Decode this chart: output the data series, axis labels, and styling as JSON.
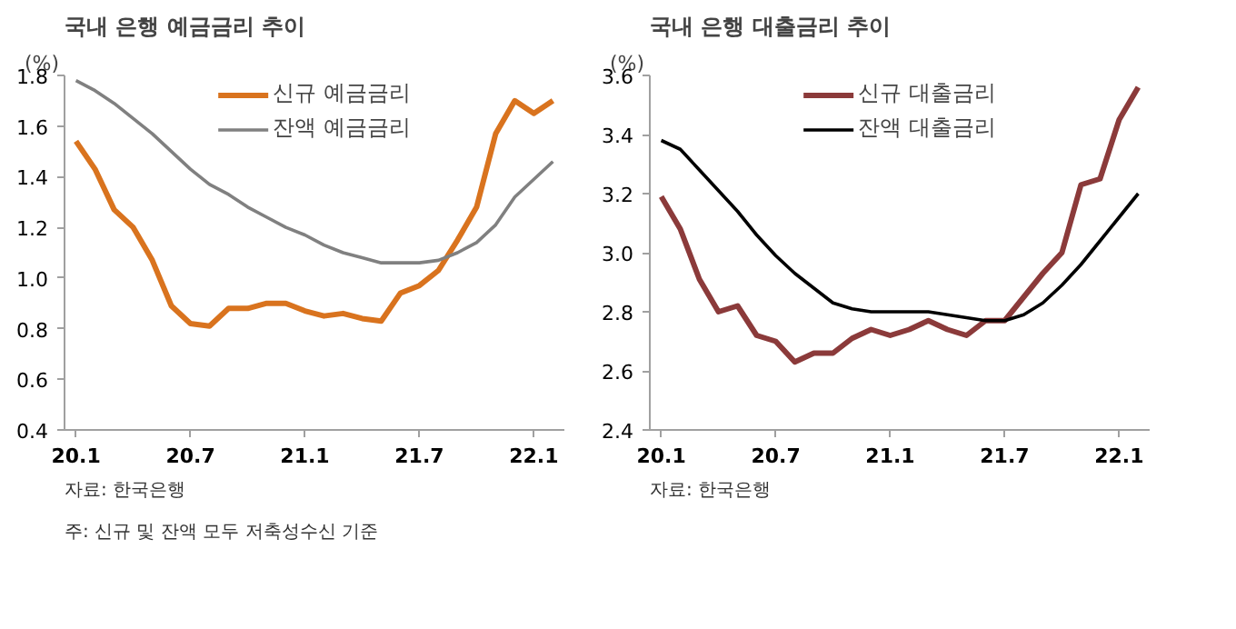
{
  "chart_data": [
    {
      "type": "line",
      "title": "국내 은행 예금금리 추이",
      "ylabel": "(%)",
      "categories": [
        "20.1",
        null,
        null,
        null,
        null,
        null,
        "20.7",
        null,
        null,
        null,
        null,
        null,
        "21.1",
        null,
        null,
        null,
        null,
        null,
        "21.7",
        null,
        null,
        null,
        null,
        null,
        "22.1",
        null
      ],
      "series": [
        {
          "name": "신규 예금금리",
          "color": "#d9731e",
          "values": [
            1.54,
            1.43,
            1.27,
            1.2,
            1.07,
            0.89,
            0.82,
            0.81,
            0.88,
            0.88,
            0.9,
            0.9,
            0.87,
            0.85,
            0.86,
            0.84,
            0.83,
            0.94,
            0.97,
            1.03,
            1.15,
            1.28,
            1.57,
            1.7,
            1.65,
            1.7
          ]
        },
        {
          "name": "잔액 예금금리",
          "color": "#808080",
          "values": [
            1.78,
            1.74,
            1.69,
            1.63,
            1.57,
            1.5,
            1.43,
            1.37,
            1.33,
            1.28,
            1.24,
            1.2,
            1.17,
            1.13,
            1.1,
            1.08,
            1.06,
            1.06,
            1.06,
            1.07,
            1.1,
            1.14,
            1.21,
            1.32,
            1.39,
            1.46
          ]
        }
      ],
      "ylim": [
        0.4,
        1.8
      ],
      "yticks": [
        {
          "value": 0.4,
          "label": "0.4"
        },
        {
          "value": 0.6,
          "label": "0.6"
        },
        {
          "value": 0.8,
          "label": "0.8"
        },
        {
          "value": 1.0,
          "label": "1.0"
        },
        {
          "value": 1.2,
          "label": "1.2"
        },
        {
          "value": 1.4,
          "label": "1.4"
        },
        {
          "value": 1.6,
          "label": "1.6"
        },
        {
          "value": 1.8,
          "label": "1.8"
        }
      ],
      "grid": false,
      "legend": "top",
      "marker": "none",
      "line_style": "solid",
      "annotations": [
        "자료: 한국은행",
        "주: 신규 및 잔액 모두 저축성수신 기준"
      ]
    },
    {
      "type": "line",
      "title": "국내 은행 대출금리 추이",
      "ylabel": "(%)",
      "categories": [
        "20.1",
        null,
        null,
        null,
        null,
        null,
        "20.7",
        null,
        null,
        null,
        null,
        null,
        "21.1",
        null,
        null,
        null,
        null,
        null,
        "21.7",
        null,
        null,
        null,
        null,
        null,
        "22.1",
        null
      ],
      "series": [
        {
          "name": "신규 대출금리",
          "color": "#8b3a3a",
          "values": [
            3.19,
            3.08,
            2.91,
            2.8,
            2.82,
            2.72,
            2.7,
            2.63,
            2.66,
            2.66,
            2.71,
            2.74,
            2.72,
            2.74,
            2.77,
            2.74,
            2.72,
            2.77,
            2.77,
            2.85,
            2.93,
            3.0,
            3.23,
            3.25,
            3.45,
            3.56
          ]
        },
        {
          "name": "잔액 대출금리",
          "color": "#000000",
          "values": [
            3.38,
            3.35,
            3.28,
            3.21,
            3.14,
            3.06,
            2.99,
            2.93,
            2.88,
            2.83,
            2.81,
            2.8,
            2.8,
            2.8,
            2.8,
            2.79,
            2.78,
            2.77,
            2.77,
            2.79,
            2.83,
            2.89,
            2.96,
            3.04,
            3.12,
            3.2
          ]
        }
      ],
      "ylim": [
        2.4,
        3.6
      ],
      "yticks": [
        {
          "value": 2.4,
          "label": "2.4"
        },
        {
          "value": 2.6,
          "label": "2.6"
        },
        {
          "value": 2.8,
          "label": "2.8"
        },
        {
          "value": 3.0,
          "label": "3.0"
        },
        {
          "value": 3.2,
          "label": "3.2"
        },
        {
          "value": 3.4,
          "label": "3.4"
        },
        {
          "value": 3.6,
          "label": "3.6"
        }
      ],
      "grid": false,
      "legend": "top",
      "marker": "none",
      "line_style": "solid",
      "annotations": [
        "자료: 한국은행"
      ]
    }
  ]
}
